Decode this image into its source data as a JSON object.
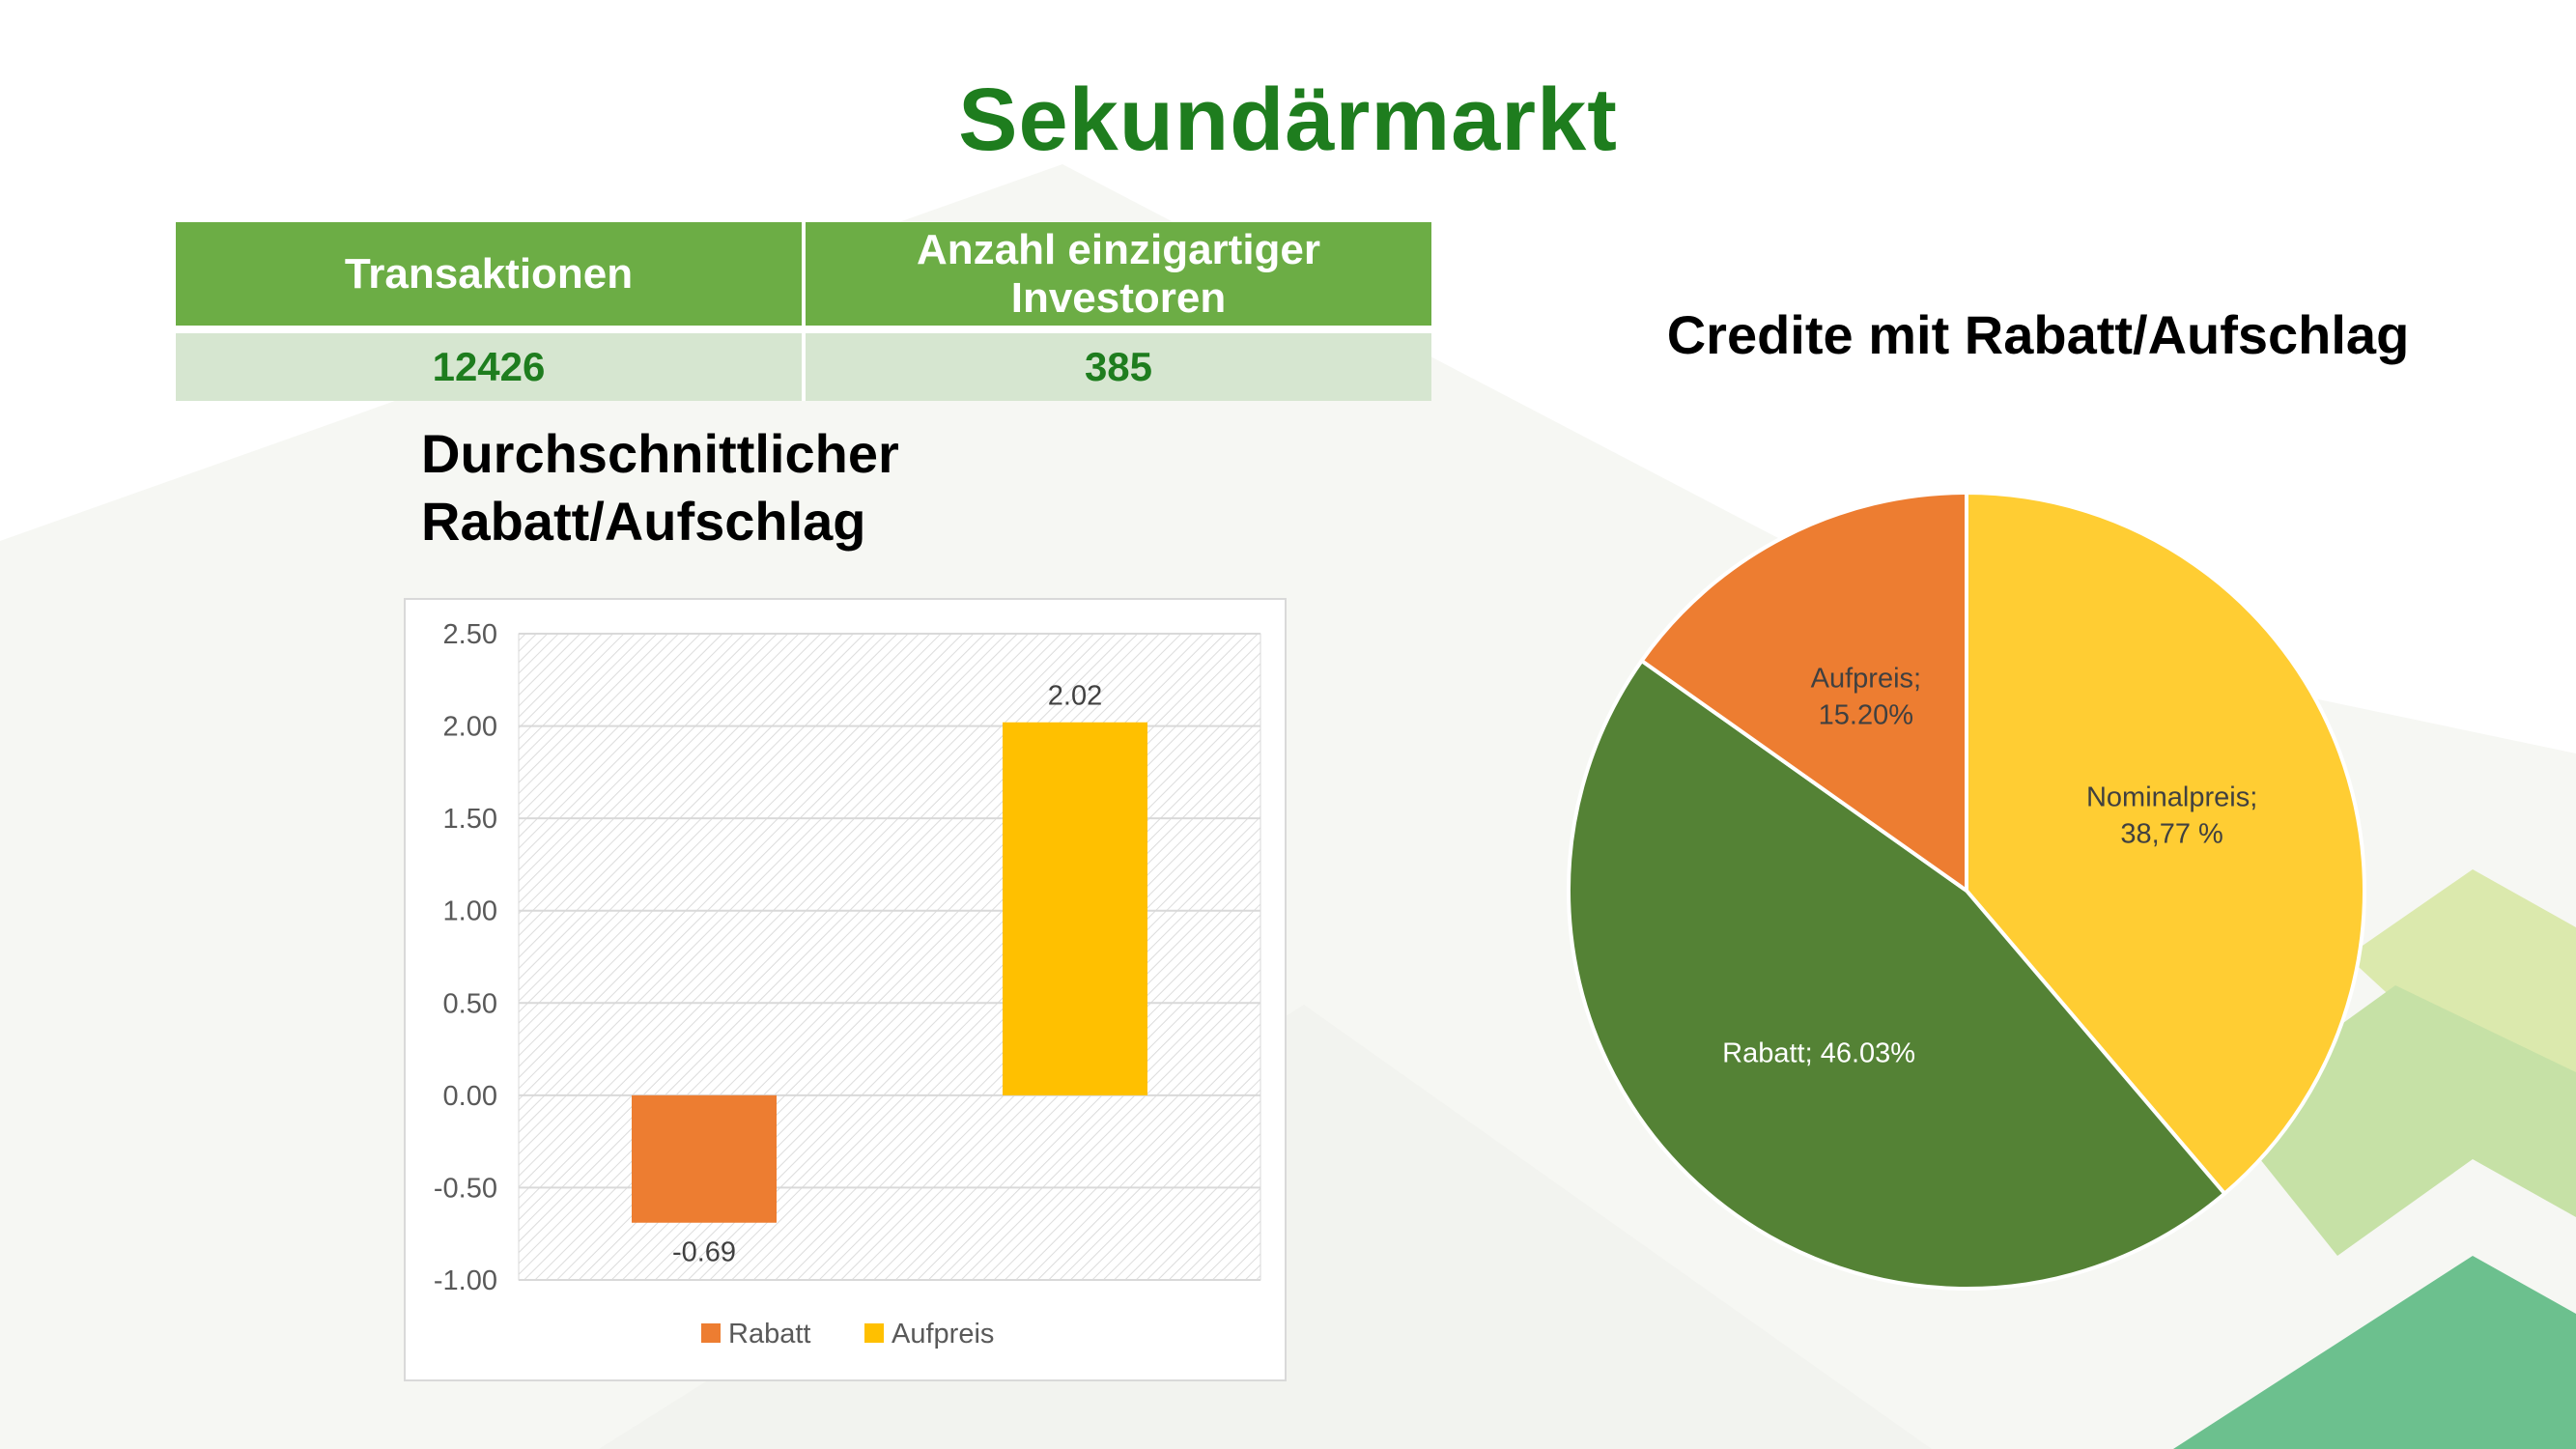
{
  "page": {
    "title": "Sekundärmarkt"
  },
  "stats": {
    "headers": [
      "Transaktionen",
      "Anzahl einzigartiger Investoren"
    ],
    "values": [
      "12426",
      "385"
    ]
  },
  "colors": {
    "title_green": "#1e7d1e",
    "header_green": "#6cad45",
    "row_tint": "#d6e6d0",
    "rabatt_orange": "#ed7d31",
    "aufpreis_yellow": "#ffc000",
    "pie_nominal": "#ffcd33",
    "pie_rabatt": "#548235",
    "pie_aufpreis": "#ed7d31"
  },
  "chart_data": [
    {
      "type": "bar",
      "title_lines": [
        "Durchschnittlicher",
        "Rabatt/Aufschlag"
      ],
      "categories": [
        "Rabatt",
        "Aufpreis"
      ],
      "values": [
        -0.69,
        2.02
      ],
      "value_labels": [
        "-0.69",
        "2.02"
      ],
      "colors": [
        "#ed7d31",
        "#ffc000"
      ],
      "ylim": [
        -1.0,
        2.5
      ],
      "yticks": [
        "2.50",
        "2.00",
        "1.50",
        "1.00",
        "0.50",
        "0.00",
        "-0.50",
        "-1.00"
      ],
      "grid": true,
      "legend": [
        "Rabatt",
        "Aufpreis"
      ],
      "legend_position": "bottom"
    },
    {
      "type": "pie",
      "title": "Credite mit Rabatt/Aufschlag",
      "slices": [
        {
          "name": "Nominalpreis",
          "value": 38.77,
          "label_lines": [
            "Nominalpreis;",
            "38,77 %"
          ],
          "color": "#ffcd33"
        },
        {
          "name": "Rabatt",
          "value": 46.03,
          "label_lines": [
            "Rabatt; 46.03%"
          ],
          "color": "#548235"
        },
        {
          "name": "Aufpreis",
          "value": 15.2,
          "label_lines": [
            "Aufpreis;",
            "15.20%"
          ],
          "color": "#ed7d31"
        }
      ]
    }
  ]
}
